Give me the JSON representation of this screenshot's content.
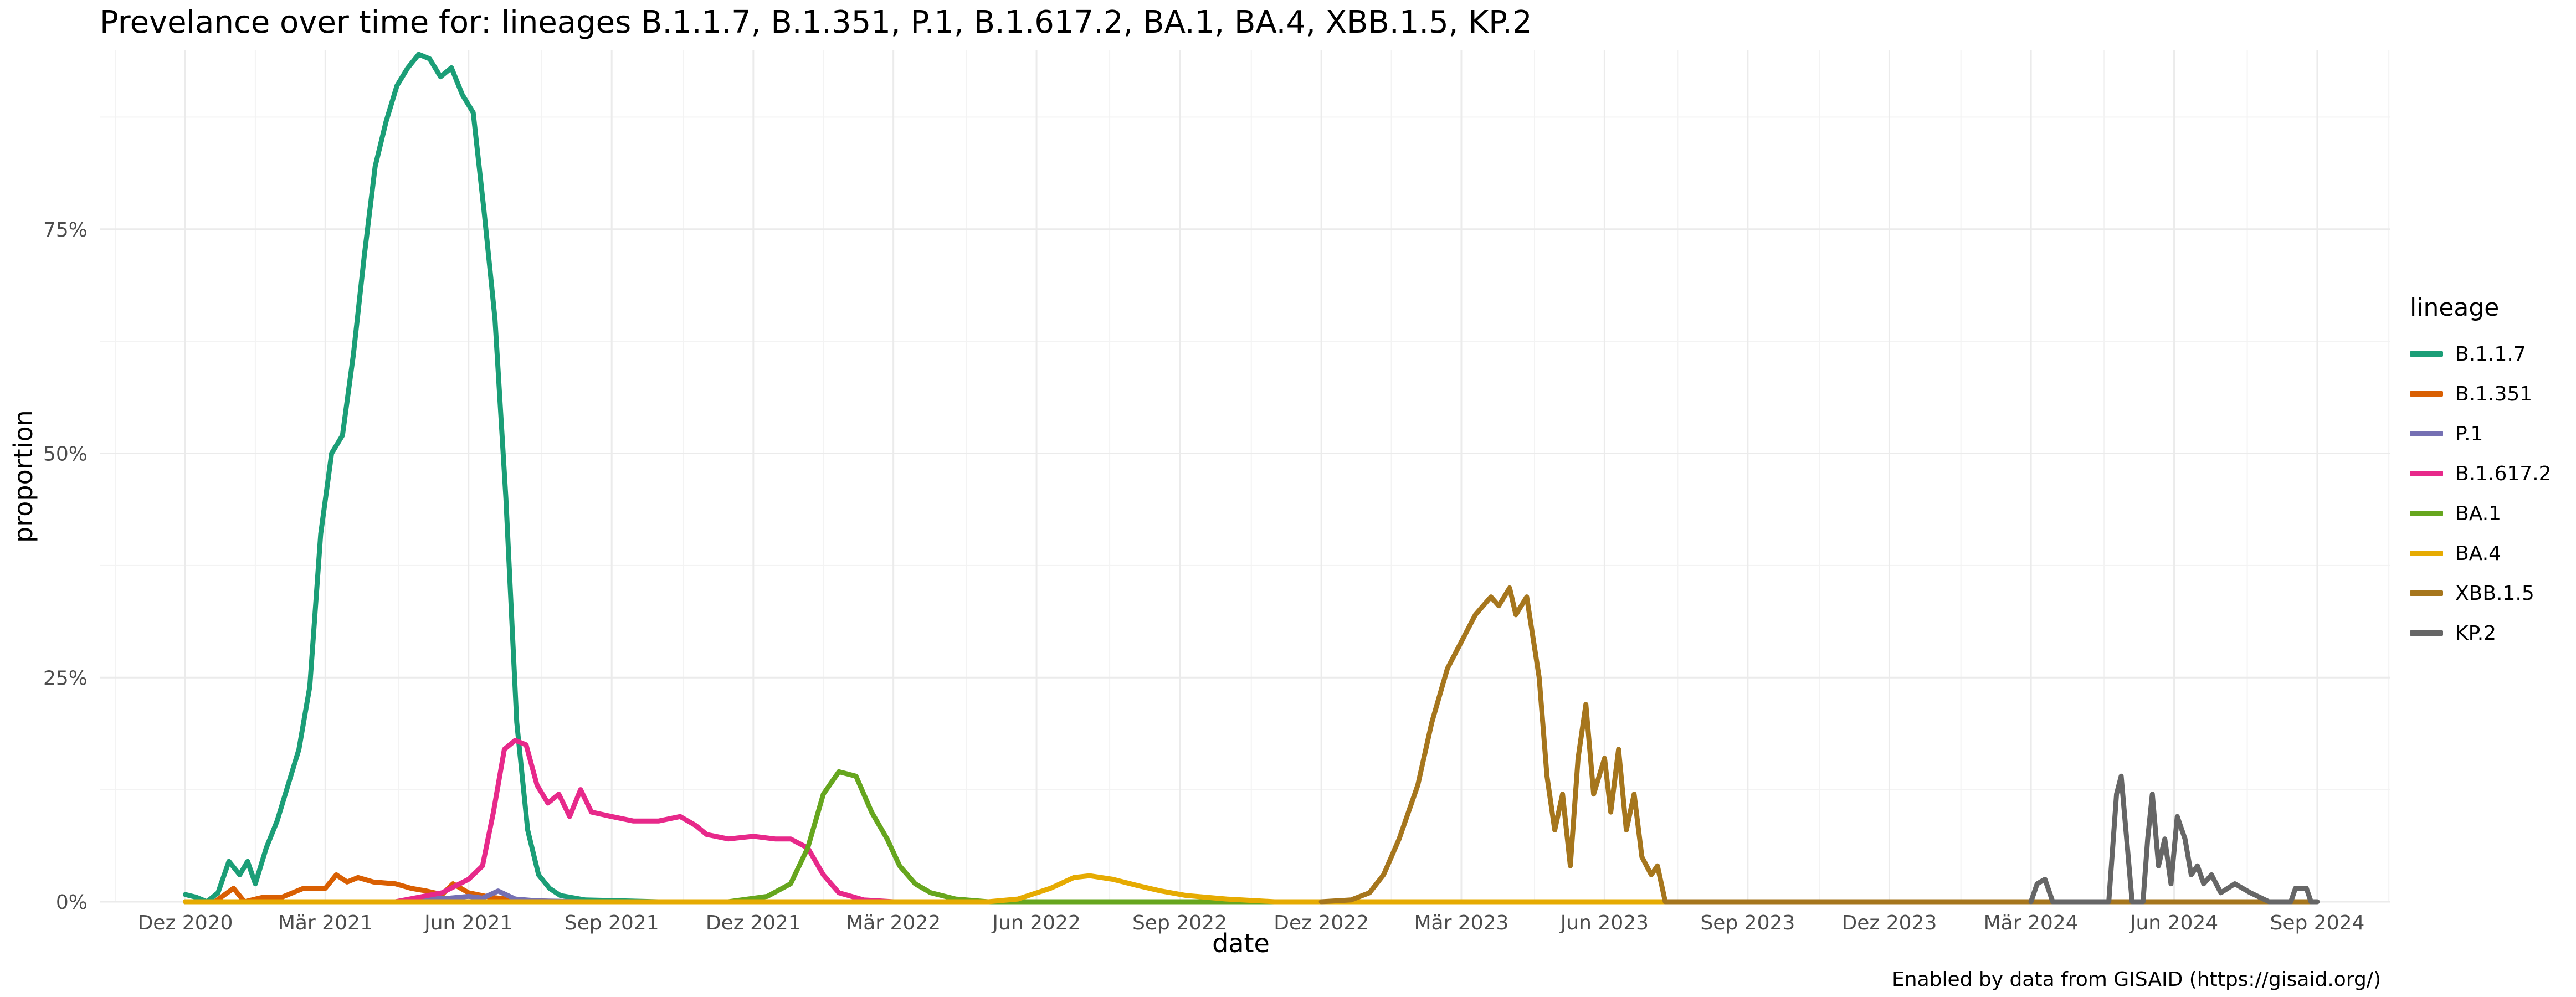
{
  "chart_data": {
    "type": "line",
    "title": "Prevelance over time for: lineages B.1.1.7, B.1.351, P.1, B.1.617.2, BA.1, BA.4, XBB.1.5, KP.2",
    "xlabel": "date",
    "ylabel": "proportion",
    "caption": "Enabled by data from GISAID (https://gisaid.org/)",
    "legend_title": "lineage",
    "legend_position": "right",
    "grid": true,
    "x_ticks": [
      "Dez 2020",
      "Mär 2021",
      "Jun 2021",
      "Sep 2021",
      "Dez 2021",
      "Mär 2022",
      "Jun 2022",
      "Sep 2022",
      "Dez 2022",
      "Mär 2023",
      "Jun 2023",
      "Sep 2023",
      "Dez 2023",
      "Mär 2024",
      "Jun 2024",
      "Sep 2024"
    ],
    "y_ticks": [
      "0%",
      "25%",
      "50%",
      "75%"
    ],
    "xlim": [
      "2020-10-07",
      "2024-10-18"
    ],
    "ylim": [
      0,
      0.95
    ],
    "series": [
      {
        "name": "B.1.1.7",
        "color": "#1b9e77",
        "points": [
          [
            "2020-12-01",
            0.008
          ],
          [
            "2020-12-08",
            0.005
          ],
          [
            "2020-12-15",
            0.0
          ],
          [
            "2020-12-22",
            0.01
          ],
          [
            "2020-12-29",
            0.045
          ],
          [
            "2021-01-05",
            0.03
          ],
          [
            "2021-01-10",
            0.045
          ],
          [
            "2021-01-15",
            0.02
          ],
          [
            "2021-01-22",
            0.06
          ],
          [
            "2021-01-29",
            0.09
          ],
          [
            "2021-02-05",
            0.13
          ],
          [
            "2021-02-12",
            0.17
          ],
          [
            "2021-02-19",
            0.24
          ],
          [
            "2021-02-26",
            0.41
          ],
          [
            "2021-03-05",
            0.5
          ],
          [
            "2021-03-12",
            0.52
          ],
          [
            "2021-03-19",
            0.61
          ],
          [
            "2021-03-26",
            0.72
          ],
          [
            "2021-04-02",
            0.82
          ],
          [
            "2021-04-09",
            0.87
          ],
          [
            "2021-04-16",
            0.91
          ],
          [
            "2021-04-23",
            0.93
          ],
          [
            "2021-04-30",
            0.945
          ],
          [
            "2021-05-07",
            0.94
          ],
          [
            "2021-05-14",
            0.92
          ],
          [
            "2021-05-21",
            0.93
          ],
          [
            "2021-05-28",
            0.9
          ],
          [
            "2021-06-04",
            0.88
          ],
          [
            "2021-06-11",
            0.77
          ],
          [
            "2021-06-18",
            0.65
          ],
          [
            "2021-06-25",
            0.45
          ],
          [
            "2021-07-02",
            0.2
          ],
          [
            "2021-07-09",
            0.08
          ],
          [
            "2021-07-16",
            0.03
          ],
          [
            "2021-07-23",
            0.015
          ],
          [
            "2021-07-30",
            0.007
          ],
          [
            "2021-08-15",
            0.002
          ],
          [
            "2021-10-01",
            0.0
          ],
          [
            "2024-08-30",
            0.0
          ]
        ]
      },
      {
        "name": "B.1.351",
        "color": "#d95f02",
        "points": [
          [
            "2020-12-01",
            0.0
          ],
          [
            "2020-12-20",
            0.0
          ],
          [
            "2021-01-01",
            0.015
          ],
          [
            "2021-01-08",
            0.0
          ],
          [
            "2021-01-20",
            0.005
          ],
          [
            "2021-02-01",
            0.005
          ],
          [
            "2021-02-15",
            0.015
          ],
          [
            "2021-03-01",
            0.015
          ],
          [
            "2021-03-08",
            0.03
          ],
          [
            "2021-03-15",
            0.022
          ],
          [
            "2021-03-22",
            0.027
          ],
          [
            "2021-04-01",
            0.022
          ],
          [
            "2021-04-15",
            0.02
          ],
          [
            "2021-04-25",
            0.015
          ],
          [
            "2021-05-05",
            0.012
          ],
          [
            "2021-05-15",
            0.008
          ],
          [
            "2021-05-22",
            0.02
          ],
          [
            "2021-06-01",
            0.01
          ],
          [
            "2021-06-15",
            0.005
          ],
          [
            "2021-07-01",
            0.002
          ],
          [
            "2021-08-01",
            0.0
          ],
          [
            "2024-08-30",
            0.0
          ]
        ]
      },
      {
        "name": "P.1",
        "color": "#7570b3",
        "points": [
          [
            "2021-04-15",
            0.0
          ],
          [
            "2021-05-01",
            0.003
          ],
          [
            "2021-05-20",
            0.004
          ],
          [
            "2021-06-01",
            0.006
          ],
          [
            "2021-06-10",
            0.004
          ],
          [
            "2021-06-20",
            0.012
          ],
          [
            "2021-07-01",
            0.003
          ],
          [
            "2021-07-15",
            0.001
          ],
          [
            "2021-08-15",
            0.0
          ],
          [
            "2024-08-30",
            0.0
          ]
        ]
      },
      {
        "name": "B.1.617.2",
        "color": "#e7298a",
        "points": [
          [
            "2021-04-15",
            0.0
          ],
          [
            "2021-05-15",
            0.01
          ],
          [
            "2021-06-01",
            0.025
          ],
          [
            "2021-06-10",
            0.04
          ],
          [
            "2021-06-17",
            0.1
          ],
          [
            "2021-06-24",
            0.17
          ],
          [
            "2021-07-01",
            0.18
          ],
          [
            "2021-07-08",
            0.175
          ],
          [
            "2021-07-15",
            0.13
          ],
          [
            "2021-07-22",
            0.11
          ],
          [
            "2021-07-29",
            0.12
          ],
          [
            "2021-08-05",
            0.095
          ],
          [
            "2021-08-12",
            0.125
          ],
          [
            "2021-08-19",
            0.1
          ],
          [
            "2021-09-01",
            0.095
          ],
          [
            "2021-09-15",
            0.09
          ],
          [
            "2021-10-01",
            0.09
          ],
          [
            "2021-10-15",
            0.095
          ],
          [
            "2021-10-25",
            0.085
          ],
          [
            "2021-11-01",
            0.075
          ],
          [
            "2021-11-15",
            0.07
          ],
          [
            "2021-12-01",
            0.073
          ],
          [
            "2021-12-15",
            0.07
          ],
          [
            "2021-12-25",
            0.07
          ],
          [
            "2022-01-05",
            0.06
          ],
          [
            "2022-01-15",
            0.03
          ],
          [
            "2022-01-25",
            0.01
          ],
          [
            "2022-02-10",
            0.002
          ],
          [
            "2022-03-01",
            0.0
          ],
          [
            "2024-08-30",
            0.0
          ]
        ]
      },
      {
        "name": "BA.1",
        "color": "#66a61e",
        "points": [
          [
            "2020-12-01",
            0.0
          ],
          [
            "2021-11-15",
            0.0
          ],
          [
            "2021-12-10",
            0.006
          ],
          [
            "2021-12-25",
            0.02
          ],
          [
            "2022-01-05",
            0.06
          ],
          [
            "2022-01-15",
            0.12
          ],
          [
            "2022-01-25",
            0.145
          ],
          [
            "2022-02-05",
            0.14
          ],
          [
            "2022-02-15",
            0.1
          ],
          [
            "2022-02-25",
            0.07
          ],
          [
            "2022-03-05",
            0.04
          ],
          [
            "2022-03-15",
            0.02
          ],
          [
            "2022-03-25",
            0.01
          ],
          [
            "2022-04-10",
            0.003
          ],
          [
            "2022-05-01",
            0.0
          ],
          [
            "2024-08-30",
            0.0
          ]
        ]
      },
      {
        "name": "BA.4",
        "color": "#e6ab02",
        "points": [
          [
            "2020-12-01",
            0.0
          ],
          [
            "2022-05-01",
            0.0
          ],
          [
            "2022-05-20",
            0.003
          ],
          [
            "2022-06-10",
            0.015
          ],
          [
            "2022-06-25",
            0.027
          ],
          [
            "2022-07-05",
            0.029
          ],
          [
            "2022-07-20",
            0.025
          ],
          [
            "2022-08-05",
            0.018
          ],
          [
            "2022-08-20",
            0.012
          ],
          [
            "2022-09-05",
            0.007
          ],
          [
            "2022-10-01",
            0.003
          ],
          [
            "2022-11-01",
            0.0
          ],
          [
            "2024-08-30",
            0.0
          ]
        ]
      },
      {
        "name": "XBB.1.5",
        "color": "#a6761d",
        "points": [
          [
            "2022-12-01",
            0.0
          ],
          [
            "2022-12-20",
            0.002
          ],
          [
            "2023-01-01",
            0.01
          ],
          [
            "2023-01-10",
            0.03
          ],
          [
            "2023-01-20",
            0.07
          ],
          [
            "2023-02-01",
            0.13
          ],
          [
            "2023-02-10",
            0.2
          ],
          [
            "2023-02-20",
            0.26
          ],
          [
            "2023-03-01",
            0.29
          ],
          [
            "2023-03-10",
            0.32
          ],
          [
            "2023-03-20",
            0.34
          ],
          [
            "2023-03-25",
            0.33
          ],
          [
            "2023-04-01",
            0.35
          ],
          [
            "2023-04-05",
            0.32
          ],
          [
            "2023-04-12",
            0.34
          ],
          [
            "2023-04-20",
            0.25
          ],
          [
            "2023-04-25",
            0.14
          ],
          [
            "2023-04-30",
            0.08
          ],
          [
            "2023-05-05",
            0.12
          ],
          [
            "2023-05-10",
            0.04
          ],
          [
            "2023-05-15",
            0.16
          ],
          [
            "2023-05-20",
            0.22
          ],
          [
            "2023-05-25",
            0.12
          ],
          [
            "2023-06-01",
            0.16
          ],
          [
            "2023-06-05",
            0.1
          ],
          [
            "2023-06-10",
            0.17
          ],
          [
            "2023-06-15",
            0.08
          ],
          [
            "2023-06-20",
            0.12
          ],
          [
            "2023-06-25",
            0.05
          ],
          [
            "2023-07-01",
            0.03
          ],
          [
            "2023-07-05",
            0.04
          ],
          [
            "2023-07-10",
            0.0
          ],
          [
            "2024-08-30",
            0.0
          ]
        ]
      },
      {
        "name": "KP.2",
        "color": "#666666",
        "points": [
          [
            "2024-03-01",
            0.0
          ],
          [
            "2024-03-05",
            0.02
          ],
          [
            "2024-03-10",
            0.025
          ],
          [
            "2024-03-15",
            0.0
          ],
          [
            "2024-04-20",
            0.0
          ],
          [
            "2024-04-25",
            0.12
          ],
          [
            "2024-04-28",
            0.14
          ],
          [
            "2024-05-02",
            0.06
          ],
          [
            "2024-05-05",
            0.0
          ],
          [
            "2024-05-12",
            0.0
          ],
          [
            "2024-05-15",
            0.07
          ],
          [
            "2024-05-18",
            0.12
          ],
          [
            "2024-05-22",
            0.04
          ],
          [
            "2024-05-26",
            0.07
          ],
          [
            "2024-05-30",
            0.02
          ],
          [
            "2024-06-03",
            0.095
          ],
          [
            "2024-06-08",
            0.07
          ],
          [
            "2024-06-12",
            0.03
          ],
          [
            "2024-06-16",
            0.04
          ],
          [
            "2024-06-20",
            0.02
          ],
          [
            "2024-06-25",
            0.03
          ],
          [
            "2024-07-01",
            0.01
          ],
          [
            "2024-07-10",
            0.02
          ],
          [
            "2024-07-20",
            0.01
          ],
          [
            "2024-08-01",
            0.0
          ],
          [
            "2024-08-15",
            0.0
          ],
          [
            "2024-08-18",
            0.015
          ],
          [
            "2024-08-25",
            0.015
          ],
          [
            "2024-08-28",
            0.0
          ],
          [
            "2024-09-01",
            0.0
          ]
        ]
      }
    ]
  }
}
